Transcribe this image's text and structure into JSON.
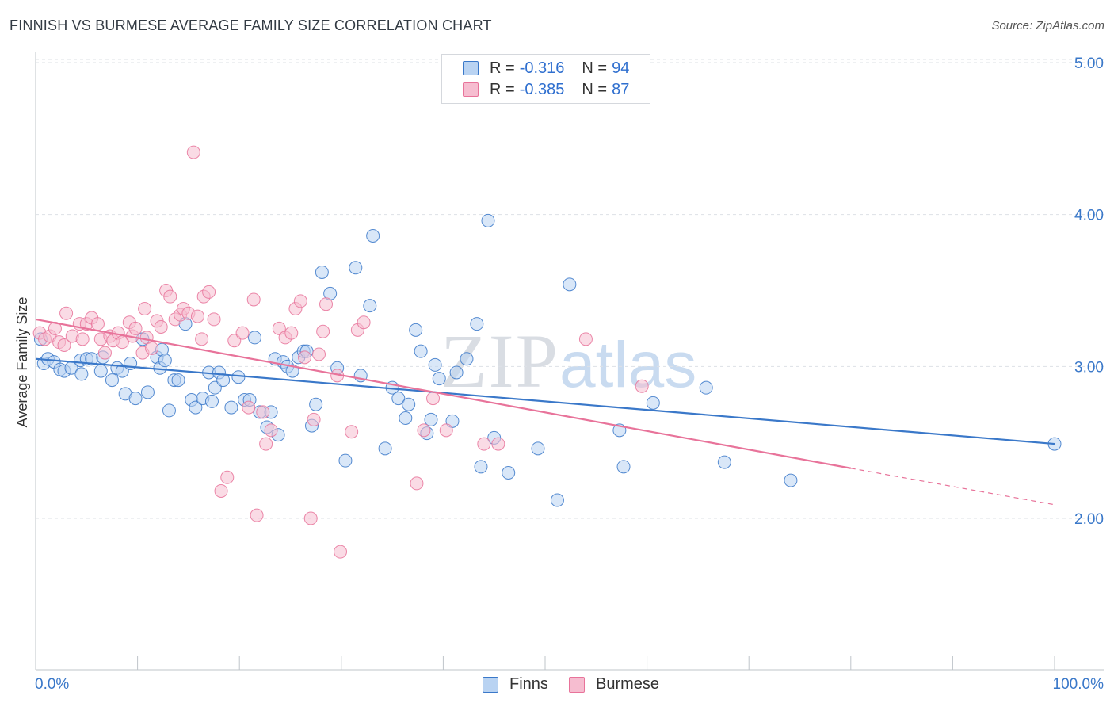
{
  "title": "FINNISH VS BURMESE AVERAGE FAMILY SIZE CORRELATION CHART",
  "source": "Source: ZipAtlas.com",
  "watermark": {
    "zip": "ZIP",
    "atlas": "atlas"
  },
  "legend": {
    "rows": [
      {
        "name": "Finns",
        "r_label": "R =",
        "r_value": "-0.316",
        "n_label": "N =",
        "n_value": "94",
        "color": "#3a78c9"
      },
      {
        "name": "Burmese",
        "r_label": "R =",
        "r_value": "-0.385",
        "n_label": "N =",
        "n_value": "87",
        "color": "#e8739a"
      }
    ]
  },
  "chart_data": {
    "type": "scatter",
    "title": "FINNISH VS BURMESE AVERAGE FAMILY SIZE CORRELATION CHART",
    "xlabel": "",
    "ylabel": "Average Family Size",
    "x_tick_labels": [
      "0.0%",
      "100.0%"
    ],
    "y_ticks": [
      2.0,
      3.0,
      4.0,
      5.0
    ],
    "y_tick_labels": [
      "2.00",
      "3.00",
      "4.00",
      "5.00"
    ],
    "xlim": [
      0,
      100
    ],
    "ylim": [
      1.0,
      5.1
    ],
    "grid": true,
    "legend_position": "bottom",
    "series": [
      {
        "name": "Finns",
        "color": "#3a78c9",
        "fill": "#b9d3f2",
        "trend": {
          "x": [
            0,
            100
          ],
          "y": [
            3.05,
            2.49
          ],
          "dashed_from": null
        },
        "points": [
          [
            0.5,
            3.18
          ],
          [
            0.8,
            3.02
          ],
          [
            1.2,
            3.05
          ],
          [
            1.8,
            3.03
          ],
          [
            2.4,
            2.98
          ],
          [
            2.8,
            2.97
          ],
          [
            3.5,
            2.99
          ],
          [
            4.5,
            2.95
          ],
          [
            4.4,
            3.04
          ],
          [
            5.0,
            3.05
          ],
          [
            5.5,
            3.05
          ],
          [
            6.4,
            2.97
          ],
          [
            6.6,
            3.06
          ],
          [
            7.5,
            2.91
          ],
          [
            8.0,
            2.99
          ],
          [
            8.5,
            2.97
          ],
          [
            8.8,
            2.82
          ],
          [
            9.3,
            3.02
          ],
          [
            9.8,
            2.79
          ],
          [
            10.5,
            3.18
          ],
          [
            11.0,
            2.83
          ],
          [
            11.9,
            3.06
          ],
          [
            12.2,
            2.99
          ],
          [
            12.4,
            3.11
          ],
          [
            12.7,
            3.04
          ],
          [
            13.1,
            2.71
          ],
          [
            13.6,
            2.91
          ],
          [
            14.0,
            2.91
          ],
          [
            14.7,
            3.28
          ],
          [
            15.3,
            2.78
          ],
          [
            15.7,
            2.73
          ],
          [
            16.4,
            2.79
          ],
          [
            17.0,
            2.96
          ],
          [
            17.3,
            2.77
          ],
          [
            17.6,
            2.86
          ],
          [
            18.0,
            2.96
          ],
          [
            18.4,
            2.91
          ],
          [
            19.2,
            2.73
          ],
          [
            19.9,
            2.93
          ],
          [
            20.5,
            2.78
          ],
          [
            21.0,
            2.78
          ],
          [
            21.5,
            3.19
          ],
          [
            22.0,
            2.7
          ],
          [
            22.7,
            2.6
          ],
          [
            23.1,
            2.7
          ],
          [
            23.5,
            3.05
          ],
          [
            23.8,
            2.55
          ],
          [
            24.3,
            3.03
          ],
          [
            24.7,
            3.0
          ],
          [
            25.2,
            2.97
          ],
          [
            25.8,
            3.06
          ],
          [
            26.3,
            3.1
          ],
          [
            26.6,
            3.1
          ],
          [
            27.1,
            2.61
          ],
          [
            27.5,
            2.75
          ],
          [
            28.1,
            3.62
          ],
          [
            28.9,
            3.48
          ],
          [
            29.6,
            2.99
          ],
          [
            30.4,
            2.38
          ],
          [
            31.4,
            3.65
          ],
          [
            31.9,
            2.94
          ],
          [
            32.8,
            3.4
          ],
          [
            33.1,
            3.86
          ],
          [
            34.3,
            2.46
          ],
          [
            35.0,
            2.86
          ],
          [
            35.6,
            2.79
          ],
          [
            36.3,
            2.66
          ],
          [
            36.6,
            2.75
          ],
          [
            37.3,
            3.24
          ],
          [
            37.8,
            3.1
          ],
          [
            38.4,
            2.56
          ],
          [
            38.8,
            2.65
          ],
          [
            39.2,
            3.01
          ],
          [
            39.6,
            2.92
          ],
          [
            40.9,
            2.64
          ],
          [
            41.3,
            2.96
          ],
          [
            42.3,
            3.05
          ],
          [
            43.3,
            3.28
          ],
          [
            43.7,
            2.34
          ],
          [
            44.4,
            3.96
          ],
          [
            45.0,
            2.53
          ],
          [
            46.4,
            2.3
          ],
          [
            49.3,
            2.46
          ],
          [
            51.2,
            2.12
          ],
          [
            52.4,
            3.54
          ],
          [
            57.3,
            2.58
          ],
          [
            57.7,
            2.34
          ],
          [
            60.6,
            2.76
          ],
          [
            65.8,
            2.86
          ],
          [
            67.6,
            2.37
          ],
          [
            74.1,
            2.25
          ],
          [
            100.0,
            2.49
          ]
        ]
      },
      {
        "name": "Burmese",
        "color": "#e8739a",
        "fill": "#f6bdd0",
        "trend": {
          "x": [
            0,
            80,
            100
          ],
          "y": [
            3.31,
            2.33,
            2.09
          ],
          "dashed_from": 80
        },
        "points": [
          [
            0.4,
            3.22
          ],
          [
            0.9,
            3.18
          ],
          [
            1.4,
            3.2
          ],
          [
            1.9,
            3.25
          ],
          [
            2.3,
            3.16
          ],
          [
            2.8,
            3.14
          ],
          [
            3.0,
            3.35
          ],
          [
            3.6,
            3.2
          ],
          [
            4.3,
            3.28
          ],
          [
            4.6,
            3.18
          ],
          [
            5.0,
            3.28
          ],
          [
            5.5,
            3.32
          ],
          [
            6.1,
            3.28
          ],
          [
            6.4,
            3.18
          ],
          [
            6.8,
            3.09
          ],
          [
            7.3,
            3.2
          ],
          [
            7.6,
            3.17
          ],
          [
            8.1,
            3.22
          ],
          [
            8.5,
            3.16
          ],
          [
            9.2,
            3.29
          ],
          [
            9.5,
            3.2
          ],
          [
            9.8,
            3.25
          ],
          [
            10.5,
            3.09
          ],
          [
            10.7,
            3.38
          ],
          [
            10.9,
            3.19
          ],
          [
            11.4,
            3.12
          ],
          [
            11.9,
            3.3
          ],
          [
            12.3,
            3.26
          ],
          [
            12.8,
            3.5
          ],
          [
            13.2,
            3.46
          ],
          [
            13.7,
            3.31
          ],
          [
            14.2,
            3.34
          ],
          [
            14.5,
            3.38
          ],
          [
            15.0,
            3.35
          ],
          [
            15.5,
            4.41
          ],
          [
            15.9,
            3.33
          ],
          [
            16.3,
            3.18
          ],
          [
            16.5,
            3.46
          ],
          [
            17.0,
            3.49
          ],
          [
            17.5,
            3.31
          ],
          [
            18.2,
            2.18
          ],
          [
            18.8,
            2.27
          ],
          [
            19.5,
            3.17
          ],
          [
            20.3,
            3.22
          ],
          [
            20.9,
            2.73
          ],
          [
            21.4,
            3.44
          ],
          [
            21.7,
            2.02
          ],
          [
            22.3,
            2.7
          ],
          [
            22.6,
            2.49
          ],
          [
            23.1,
            2.58
          ],
          [
            23.9,
            3.25
          ],
          [
            24.5,
            3.19
          ],
          [
            25.1,
            3.22
          ],
          [
            25.5,
            3.38
          ],
          [
            26.0,
            3.43
          ],
          [
            26.4,
            3.06
          ],
          [
            27.0,
            2.0
          ],
          [
            27.3,
            2.65
          ],
          [
            27.8,
            3.08
          ],
          [
            28.2,
            3.23
          ],
          [
            28.5,
            3.41
          ],
          [
            29.6,
            2.94
          ],
          [
            29.9,
            1.78
          ],
          [
            31.0,
            2.57
          ],
          [
            31.6,
            3.24
          ],
          [
            32.2,
            3.29
          ],
          [
            37.4,
            2.23
          ],
          [
            38.1,
            2.58
          ],
          [
            39.0,
            2.79
          ],
          [
            40.3,
            2.58
          ],
          [
            44.0,
            2.49
          ],
          [
            45.4,
            2.49
          ],
          [
            54.0,
            3.18
          ],
          [
            59.5,
            2.87
          ]
        ]
      }
    ]
  }
}
